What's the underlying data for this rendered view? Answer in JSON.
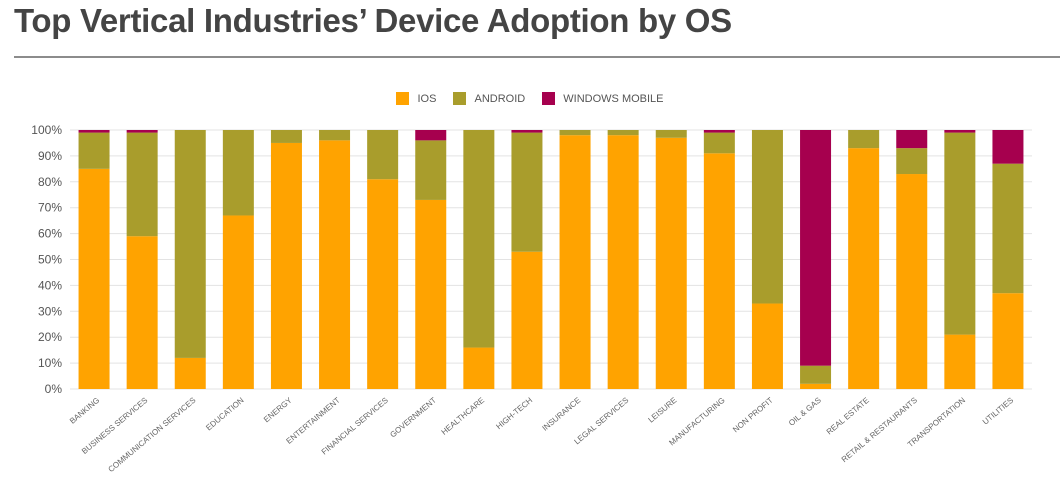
{
  "chart_data": {
    "type": "bar",
    "stacked": true,
    "title": "Top Vertical Industries’ Device Adoption by OS",
    "xlabel": "",
    "ylabel": "",
    "ylim": [
      0,
      100
    ],
    "yticks": [
      "0%",
      "10%",
      "20%",
      "30%",
      "40%",
      "50%",
      "60%",
      "70%",
      "80%",
      "90%",
      "100%"
    ],
    "grid": true,
    "legend_position": "top-center",
    "categories": [
      "BANKING",
      "BUSINESS SERVICES",
      "COMMUNICATION SERVICES",
      "EDUCATION",
      "ENERGY",
      "ENTERTAINMENT",
      "FINANCIAL SERVICES",
      "GOVERNMENT",
      "HEALTHCARE",
      "HIGH-TECH",
      "INSURANCE",
      "LEGAL SERVICES",
      "LEISURE",
      "MANUFACTURING",
      "NON PROFIT",
      "OIL & GAS",
      "REAL ESTATE",
      "RETAIL & RESTAURANTS",
      "TRANSPORTATION",
      "UTILITIES"
    ],
    "series": [
      {
        "name": "IOS",
        "color": "#FFA300",
        "values": [
          85,
          59,
          12,
          67,
          95,
          96,
          81,
          73,
          16,
          53,
          98,
          98,
          97,
          91,
          33,
          2,
          93,
          83,
          21,
          37
        ]
      },
      {
        "name": "ANDROID",
        "color": "#A99D2C",
        "values": [
          14,
          40,
          88,
          33,
          5,
          4,
          19,
          23,
          84,
          46,
          2,
          2,
          3,
          8,
          67,
          7,
          7,
          10,
          78,
          50
        ]
      },
      {
        "name": "WINDOWS MOBILE",
        "color": "#A6004E",
        "values": [
          1,
          1,
          0,
          0,
          0,
          0,
          0,
          4,
          0,
          1,
          0,
          0,
          0,
          1,
          0,
          91,
          0,
          7,
          1,
          13
        ]
      }
    ]
  }
}
